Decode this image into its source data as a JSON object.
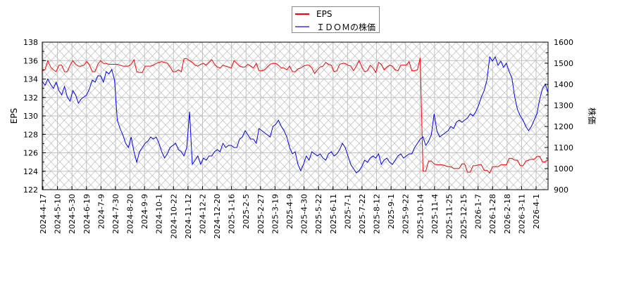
{
  "chart_data": {
    "type": "line",
    "title": "",
    "xlabel": "",
    "ylabel": "EPS",
    "ylabel_right": "株価",
    "ylim": [
      122,
      138
    ],
    "ylim_right": [
      900,
      1600
    ],
    "yticks": [
      122,
      124,
      126,
      128,
      130,
      132,
      134,
      136,
      138
    ],
    "yticks_right": [
      900,
      1000,
      1100,
      1200,
      1300,
      1400,
      1500,
      1600
    ],
    "grid": true,
    "legend_position": "top-center",
    "x_tick_labels": [
      "2024-4-17",
      "2024-5-10",
      "2024-5-30",
      "2024-6-19",
      "2024-7-9",
      "2024-7-30",
      "2024-8-20",
      "2024-9-9",
      "2024-10-1",
      "2024-10-22",
      "2024-11-12",
      "2024-12-2",
      "2024-12-20",
      "2025-1-16",
      "2025-2-5",
      "2025-2-27",
      "2025-3-19",
      "2025-4-9",
      "2025-4-30",
      "2025-5-22",
      "2025-6-11",
      "2025-7-1",
      "2025-7-22",
      "2025-8-12",
      "2025-9-1",
      "2025-9-22",
      "2025-10-14",
      "2025-11-4",
      "2025-11-25",
      "2025-12-15",
      "2026-1-7",
      "2026-1-28",
      "2026-2-18",
      "2026-3-11",
      "2026-4-1"
    ],
    "series": [
      {
        "name": "EPS",
        "axis": "left",
        "color": "#ff0000",
        "values": [
          134.9,
          135.0,
          136.0,
          135.3,
          135.0,
          134.8,
          135.5,
          135.5,
          134.8,
          134.8,
          135.5,
          136.0,
          135.6,
          135.4,
          135.4,
          135.5,
          135.9,
          135.5,
          134.8,
          134.8,
          135.6,
          136.0,
          135.7,
          135.7,
          135.6,
          135.6,
          135.6,
          135.6,
          135.5,
          135.4,
          135.4,
          135.4,
          135.6,
          136.1,
          134.8,
          134.7,
          134.7,
          135.4,
          135.4,
          135.4,
          135.5,
          135.7,
          135.8,
          135.9,
          135.8,
          135.7,
          135.3,
          134.8,
          134.8,
          135.0,
          134.8,
          136.2,
          136.2,
          136.0,
          135.8,
          135.5,
          135.4,
          135.6,
          135.7,
          135.5,
          135.8,
          136.1,
          135.6,
          135.3,
          135.2,
          135.5,
          135.4,
          135.3,
          135.2,
          136.0,
          135.7,
          135.4,
          135.3,
          135.3,
          135.6,
          135.4,
          135.2,
          135.7,
          134.9,
          134.9,
          135.0,
          135.3,
          135.6,
          135.7,
          135.7,
          135.5,
          135.2,
          135.2,
          135.0,
          135.4,
          134.8,
          134.8,
          135.1,
          135.2,
          135.4,
          135.5,
          135.5,
          135.2,
          134.6,
          135.0,
          135.3,
          135.4,
          135.8,
          135.6,
          135.5,
          134.8,
          134.9,
          135.6,
          135.7,
          135.7,
          135.5,
          135.4,
          134.9,
          135.4,
          136.0,
          135.3,
          134.8,
          134.9,
          135.5,
          135.2,
          134.7,
          135.8,
          135.6,
          135.0,
          135.3,
          135.5,
          135.4,
          135.0,
          134.9,
          135.5,
          135.5,
          135.5,
          135.9,
          134.9,
          134.9,
          135.0,
          136.3,
          124.0,
          124.0,
          125.1,
          125.1,
          124.8,
          124.7,
          124.7,
          124.7,
          124.6,
          124.5,
          124.5,
          124.3,
          124.3,
          124.3,
          124.8,
          124.8,
          123.9,
          123.9,
          124.6,
          124.6,
          124.7,
          124.7,
          124.1,
          124.1,
          123.8,
          124.5,
          124.5,
          124.5,
          124.7,
          124.7,
          124.7,
          125.4,
          125.4,
          125.2,
          125.2,
          124.6,
          124.6,
          125.1,
          125.2,
          125.3,
          125.3,
          125.6,
          125.6,
          125.0,
          125.0,
          125.3
        ]
      },
      {
        "name": "ＩＤＯＭの株価",
        "axis": "right",
        "color": "#0000ff",
        "values": [
          1415,
          1395,
          1425,
          1400,
          1380,
          1410,
          1370,
          1350,
          1390,
          1340,
          1320,
          1370,
          1350,
          1310,
          1330,
          1340,
          1350,
          1380,
          1420,
          1410,
          1440,
          1440,
          1410,
          1460,
          1450,
          1470,
          1420,
          1230,
          1190,
          1160,
          1120,
          1100,
          1150,
          1080,
          1030,
          1080,
          1100,
          1120,
          1130,
          1150,
          1140,
          1150,
          1120,
          1080,
          1050,
          1070,
          1100,
          1110,
          1120,
          1090,
          1080,
          1060,
          1100,
          1270,
          1020,
          1040,
          1060,
          1020,
          1050,
          1040,
          1060,
          1060,
          1080,
          1090,
          1080,
          1120,
          1100,
          1110,
          1110,
          1100,
          1100,
          1140,
          1150,
          1180,
          1160,
          1140,
          1140,
          1120,
          1190,
          1180,
          1170,
          1160,
          1150,
          1200,
          1210,
          1230,
          1200,
          1180,
          1150,
          1100,
          1070,
          1080,
          1020,
          990,
          1020,
          1060,
          1040,
          1080,
          1070,
          1060,
          1070,
          1050,
          1040,
          1070,
          1080,
          1060,
          1070,
          1090,
          1120,
          1100,
          1060,
          1020,
          1000,
          980,
          990,
          1010,
          1040,
          1030,
          1050,
          1060,
          1050,
          1070,
          1020,
          1040,
          1050,
          1030,
          1020,
          1040,
          1060,
          1070,
          1050,
          1060,
          1070,
          1070,
          1100,
          1120,
          1140,
          1150,
          1110,
          1130,
          1160,
          1260,
          1180,
          1150,
          1160,
          1170,
          1180,
          1200,
          1190,
          1220,
          1230,
          1220,
          1230,
          1240,
          1260,
          1250,
          1270,
          1300,
          1340,
          1370,
          1420,
          1530,
          1510,
          1530,
          1490,
          1510,
          1480,
          1500,
          1460,
          1430,
          1340,
          1280,
          1250,
          1230,
          1200,
          1180,
          1200,
          1230,
          1260,
          1330,
          1380,
          1400,
          1360
        ]
      }
    ]
  },
  "legend": {
    "items": [
      {
        "label": "EPS",
        "color": "#ff0000"
      },
      {
        "label": "ＩＤＯＭの株価",
        "color": "#0000ff"
      }
    ]
  },
  "axes": {
    "left_title": "EPS",
    "right_title": "株価"
  },
  "colors": {
    "grid": "#c0c0c0",
    "hatch": "#b4b4b4",
    "frame": "#000000",
    "legend_border": "#888888"
  }
}
